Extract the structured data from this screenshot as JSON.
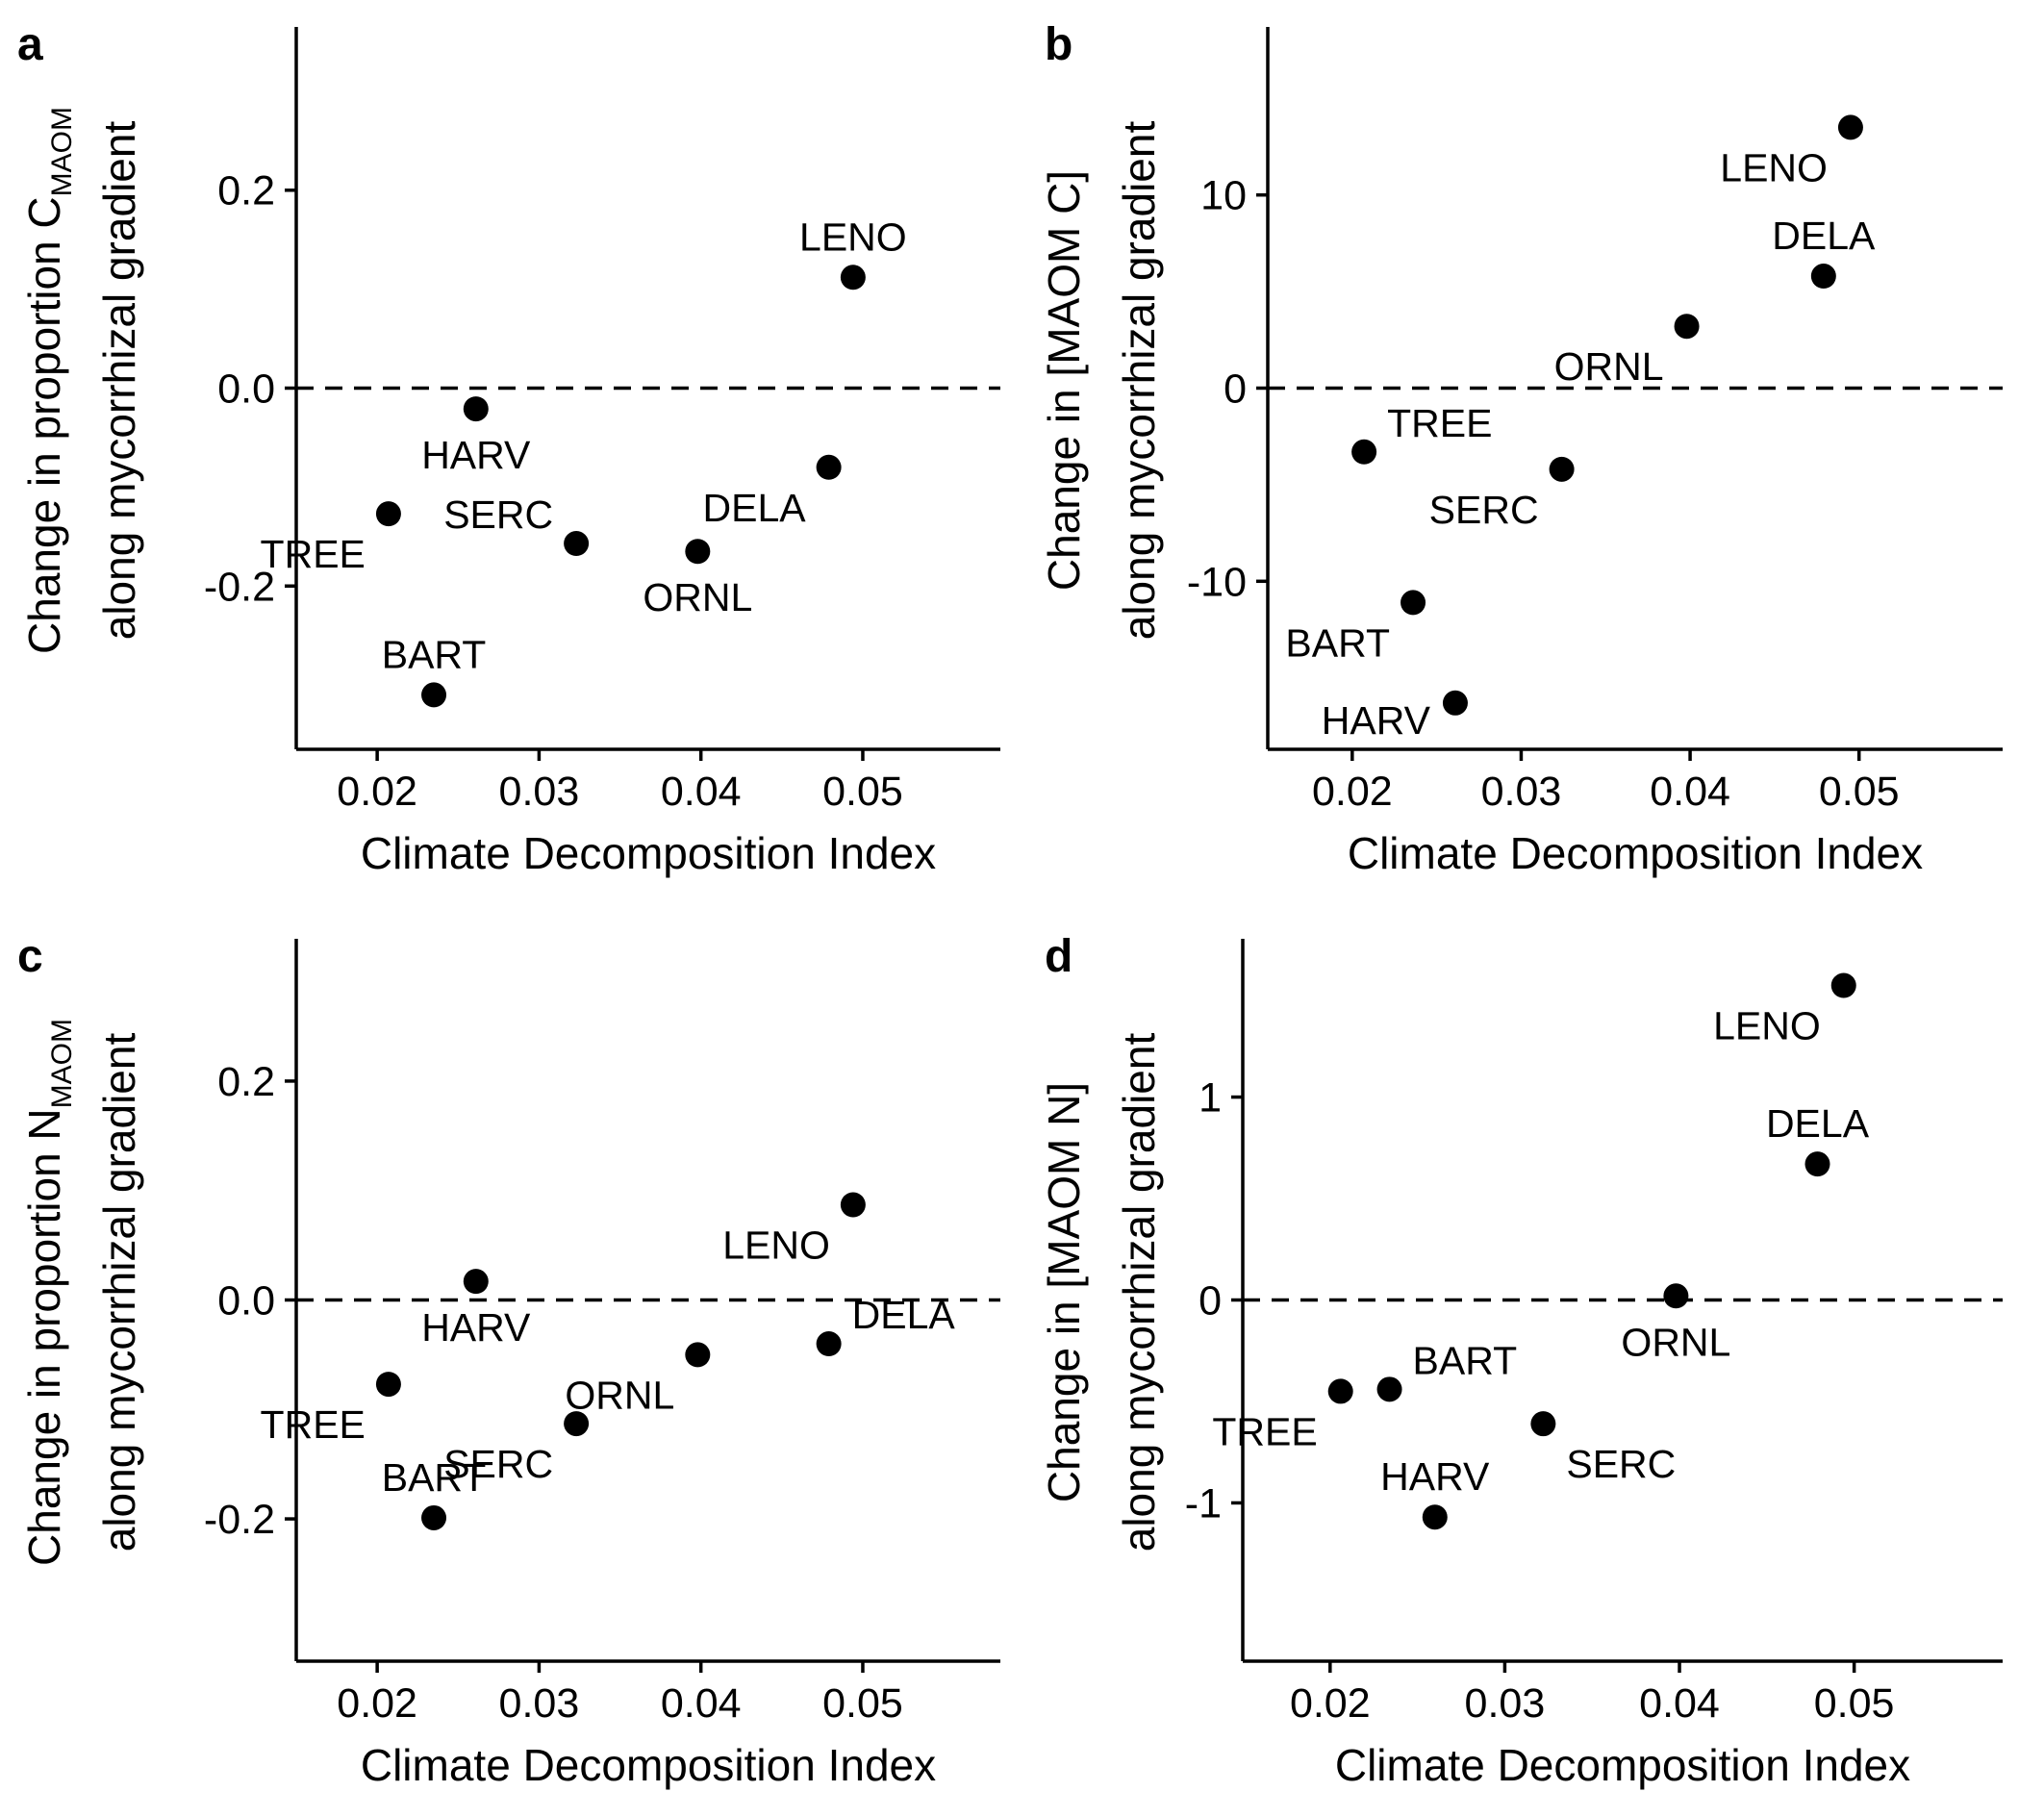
{
  "chart_data": [
    {
      "panel": "a",
      "type": "scatter",
      "xlabel": "Climate Decomposition Index",
      "ylabel": {
        "line1": [
          "Change in proportion C",
          "MAOM"
        ],
        "line2": "along mycorrhizal gradient"
      },
      "xlim": [
        0.015,
        0.0585
      ],
      "ylim": [
        -0.365,
        0.365
      ],
      "x_ticks": [
        "0.02",
        "0.03",
        "0.04",
        "0.05"
      ],
      "y_ticks": [
        "-0.2",
        "0.0",
        "0.2"
      ],
      "reference_line": {
        "y": 0,
        "style": "dashed"
      },
      "points": [
        {
          "label": "LENO",
          "x": 0.0494,
          "y": 0.112,
          "label_pos": "above"
        },
        {
          "label": "HARV",
          "x": 0.0261,
          "y": -0.021,
          "label_pos": "below"
        },
        {
          "label": "DELA",
          "x": 0.0479,
          "y": -0.08,
          "label_pos": "below-left"
        },
        {
          "label": "TREE",
          "x": 0.0207,
          "y": -0.127,
          "label_pos": "below-left"
        },
        {
          "label": "SERC",
          "x": 0.0323,
          "y": -0.157,
          "label_pos": "above-left"
        },
        {
          "label": "ORNL",
          "x": 0.0398,
          "y": -0.165,
          "label_pos": "below"
        },
        {
          "label": "BART",
          "x": 0.0235,
          "y": -0.31,
          "label_pos": "above"
        }
      ]
    },
    {
      "panel": "b",
      "type": "scatter",
      "xlabel": "Climate Decomposition Index",
      "ylabel": {
        "line1": "Change in [MAOM C]",
        "line2": "along mycorrhizal gradient"
      },
      "xlim": [
        0.015,
        0.0585
      ],
      "ylim": [
        -18.7,
        18.7
      ],
      "x_ticks": [
        "0.02",
        "0.03",
        "0.04",
        "0.05"
      ],
      "y_ticks": [
        "-10",
        "0",
        "10"
      ],
      "reference_line": {
        "y": 0,
        "style": "dashed"
      },
      "points": [
        {
          "label": "LENO",
          "x": 0.0495,
          "y": 13.5,
          "label_pos": "below-left"
        },
        {
          "label": "DELA",
          "x": 0.0479,
          "y": 5.8,
          "label_pos": "above"
        },
        {
          "label": "ORNL",
          "x": 0.0398,
          "y": 3.2,
          "label_pos": "below-left"
        },
        {
          "label": "TREE",
          "x": 0.0207,
          "y": -3.3,
          "label_pos": "above-right"
        },
        {
          "label": "SERC",
          "x": 0.0324,
          "y": -4.2,
          "label_pos": "below-left"
        },
        {
          "label": "BART",
          "x": 0.0236,
          "y": -11.1,
          "label_pos": "below-left"
        },
        {
          "label": "HARV",
          "x": 0.0261,
          "y": -16.3,
          "label_pos": "left"
        }
      ]
    },
    {
      "panel": "c",
      "type": "scatter",
      "xlabel": "Climate Decomposition Index",
      "ylabel": {
        "line1": [
          "Change in proportion N",
          "MAOM"
        ],
        "line2": "along mycorrhizal gradient"
      },
      "xlim": [
        0.015,
        0.0585
      ],
      "ylim": [
        -0.33,
        0.33
      ],
      "x_ticks": [
        "0.02",
        "0.03",
        "0.04",
        "0.05"
      ],
      "y_ticks": [
        "-0.2",
        "0.0",
        "0.2"
      ],
      "reference_line": {
        "y": 0,
        "style": "dashed"
      },
      "points": [
        {
          "label": "LENO",
          "x": 0.0494,
          "y": 0.087,
          "label_pos": "below-left"
        },
        {
          "label": "HARV",
          "x": 0.0261,
          "y": 0.017,
          "label_pos": "below"
        },
        {
          "label": "DELA",
          "x": 0.0479,
          "y": -0.04,
          "label_pos": "above-right"
        },
        {
          "label": "ORNL",
          "x": 0.0398,
          "y": -0.05,
          "label_pos": "below-left"
        },
        {
          "label": "TREE",
          "x": 0.0207,
          "y": -0.077,
          "label_pos": "below-left"
        },
        {
          "label": "SERC",
          "x": 0.0323,
          "y": -0.113,
          "label_pos": "below-left"
        },
        {
          "label": "BART",
          "x": 0.0235,
          "y": -0.199,
          "label_pos": "above"
        }
      ]
    },
    {
      "panel": "d",
      "type": "scatter",
      "xlabel": "Climate Decomposition Index",
      "ylabel": {
        "line1": "Change in [MAOM N]",
        "line2": "along mycorrhizal gradient"
      },
      "xlim": [
        0.015,
        0.0585
      ],
      "ylim": [
        -1.78,
        1.78
      ],
      "x_ticks": [
        "0.02",
        "0.03",
        "0.04",
        "0.05"
      ],
      "y_ticks": [
        "-1",
        "0",
        "1"
      ],
      "reference_line": {
        "y": 0,
        "style": "dashed"
      },
      "points": [
        {
          "label": "LENO",
          "x": 0.0494,
          "y": 1.55,
          "label_pos": "below-left"
        },
        {
          "label": "DELA",
          "x": 0.0479,
          "y": 0.67,
          "label_pos": "above"
        },
        {
          "label": "ORNL",
          "x": 0.0398,
          "y": 0.02,
          "label_pos": "below"
        },
        {
          "label": "BART",
          "x": 0.0234,
          "y": -0.44,
          "label_pos": "above-right"
        },
        {
          "label": "TREE",
          "x": 0.0206,
          "y": -0.45,
          "label_pos": "below-left"
        },
        {
          "label": "SERC",
          "x": 0.0322,
          "y": -0.61,
          "label_pos": "below-right"
        },
        {
          "label": "HARV",
          "x": 0.026,
          "y": -1.07,
          "label_pos": "above"
        }
      ]
    }
  ]
}
